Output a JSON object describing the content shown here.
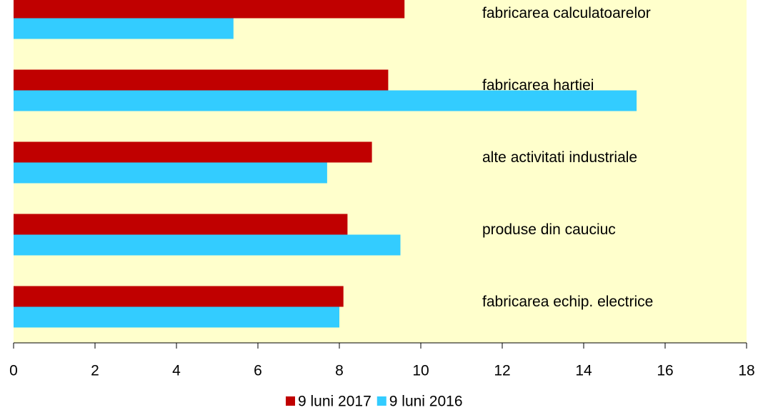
{
  "chart_data": {
    "type": "barh",
    "categories": [
      "fabricarea calculatoarelor",
      "fabricarea hartiei",
      "alte activitati industriale",
      "produse din cauciuc",
      "fabricarea echip. electrice"
    ],
    "series": [
      {
        "name": "9 luni 2017",
        "color": "#c00000",
        "values": [
          9.6,
          9.2,
          8.8,
          8.2,
          8.1
        ]
      },
      {
        "name": "9 luni 2016",
        "color": "#33ccff",
        "values": [
          5.4,
          15.3,
          7.7,
          9.5,
          8.0
        ]
      }
    ],
    "xlim": [
      0,
      18
    ],
    "xticks": [
      0,
      2,
      4,
      6,
      8,
      10,
      12,
      14,
      16,
      18
    ],
    "legend": "bottom",
    "background": "#ffffcc"
  }
}
